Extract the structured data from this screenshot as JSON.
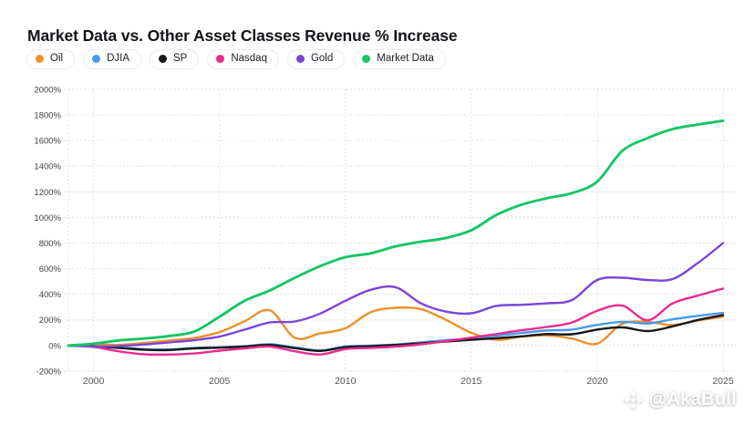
{
  "title": "Market Data vs. Other Asset Classes Revenue % Increase",
  "legend": [
    {
      "label": "Oil",
      "color": "#ee8f2e"
    },
    {
      "label": "DJIA",
      "color": "#459cea"
    },
    {
      "label": "SP",
      "color": "#17181c"
    },
    {
      "label": "Nasdaq",
      "color": "#e92a8d"
    },
    {
      "label": "Gold",
      "color": "#7a45d9"
    },
    {
      "label": "Market Data",
      "color": "#16c564"
    }
  ],
  "watermark": {
    "handle": "@AkaBull",
    "icon": "diamond-logo-icon"
  },
  "colors": {
    "grid": "#d7d7db",
    "y_axis_text": "#3f3f46",
    "x_axis_text": "#54555c",
    "background": "#ffffff"
  },
  "chart_data": {
    "type": "line",
    "title": "Market Data vs. Other Asset Classes Revenue % Increase",
    "xlabel": "",
    "ylabel": "",
    "grid": "dotted",
    "legend_position": "top",
    "ylim": [
      -200,
      2000
    ],
    "yticks": [
      2000,
      1800,
      1600,
      1400,
      1200,
      1000,
      800,
      600,
      400,
      200,
      0,
      -200
    ],
    "ytick_labels": [
      "2000%",
      "1800%",
      "1600%",
      "1400%",
      "1200%",
      "1000%",
      "800%",
      "600%",
      "400%",
      "200%",
      "0%",
      "-200%"
    ],
    "xticks": [
      2000,
      2005,
      2010,
      2015,
      2020,
      2025
    ],
    "x_gridlines": [
      1999,
      2000,
      2005,
      2010,
      2015,
      2020,
      2025
    ],
    "x": [
      1999,
      2000,
      2001,
      2002,
      2003,
      2004,
      2005,
      2006,
      2007,
      2008,
      2009,
      2010,
      2011,
      2012,
      2013,
      2014,
      2015,
      2016,
      2017,
      2018,
      2019,
      2020,
      2021,
      2022,
      2023,
      2024,
      2025
    ],
    "series": [
      {
        "name": "Oil",
        "color": "#ee8f2e",
        "values": [
          0,
          10,
          5,
          20,
          40,
          60,
          105,
          190,
          275,
          60,
          95,
          135,
          260,
          295,
          285,
          200,
          100,
          45,
          70,
          80,
          55,
          15,
          170,
          185,
          160,
          195,
          225
        ]
      },
      {
        "name": "DJIA",
        "color": "#459cea",
        "values": [
          0,
          -5,
          -15,
          -28,
          -30,
          -18,
          -13,
          -5,
          10,
          -15,
          -38,
          -8,
          0,
          8,
          25,
          42,
          58,
          78,
          98,
          118,
          125,
          162,
          185,
          172,
          205,
          232,
          255
        ]
      },
      {
        "name": "SP",
        "color": "#17181c",
        "values": [
          0,
          -6,
          -18,
          -32,
          -35,
          -22,
          -16,
          -8,
          5,
          -20,
          -42,
          -12,
          -5,
          5,
          18,
          32,
          45,
          58,
          72,
          90,
          88,
          125,
          142,
          113,
          150,
          200,
          238
        ]
      },
      {
        "name": "Nasdaq",
        "color": "#e92a8d",
        "values": [
          0,
          -10,
          -45,
          -68,
          -70,
          -62,
          -40,
          -22,
          -8,
          -45,
          -70,
          -28,
          -18,
          -8,
          10,
          35,
          62,
          90,
          120,
          145,
          180,
          272,
          312,
          198,
          330,
          390,
          445
        ]
      },
      {
        "name": "Gold",
        "color": "#7a45d9",
        "values": [
          0,
          -8,
          -4,
          8,
          25,
          42,
          70,
          125,
          180,
          188,
          250,
          350,
          435,
          455,
          330,
          265,
          252,
          310,
          318,
          330,
          355,
          512,
          530,
          512,
          520,
          645,
          800
        ]
      },
      {
        "name": "Market Data",
        "color": "#16c564",
        "values": [
          0,
          15,
          40,
          55,
          75,
          110,
          225,
          350,
          430,
          530,
          620,
          690,
          720,
          775,
          810,
          840,
          900,
          1020,
          1100,
          1150,
          1190,
          1280,
          1520,
          1620,
          1690,
          1725,
          1755
        ]
      }
    ]
  }
}
